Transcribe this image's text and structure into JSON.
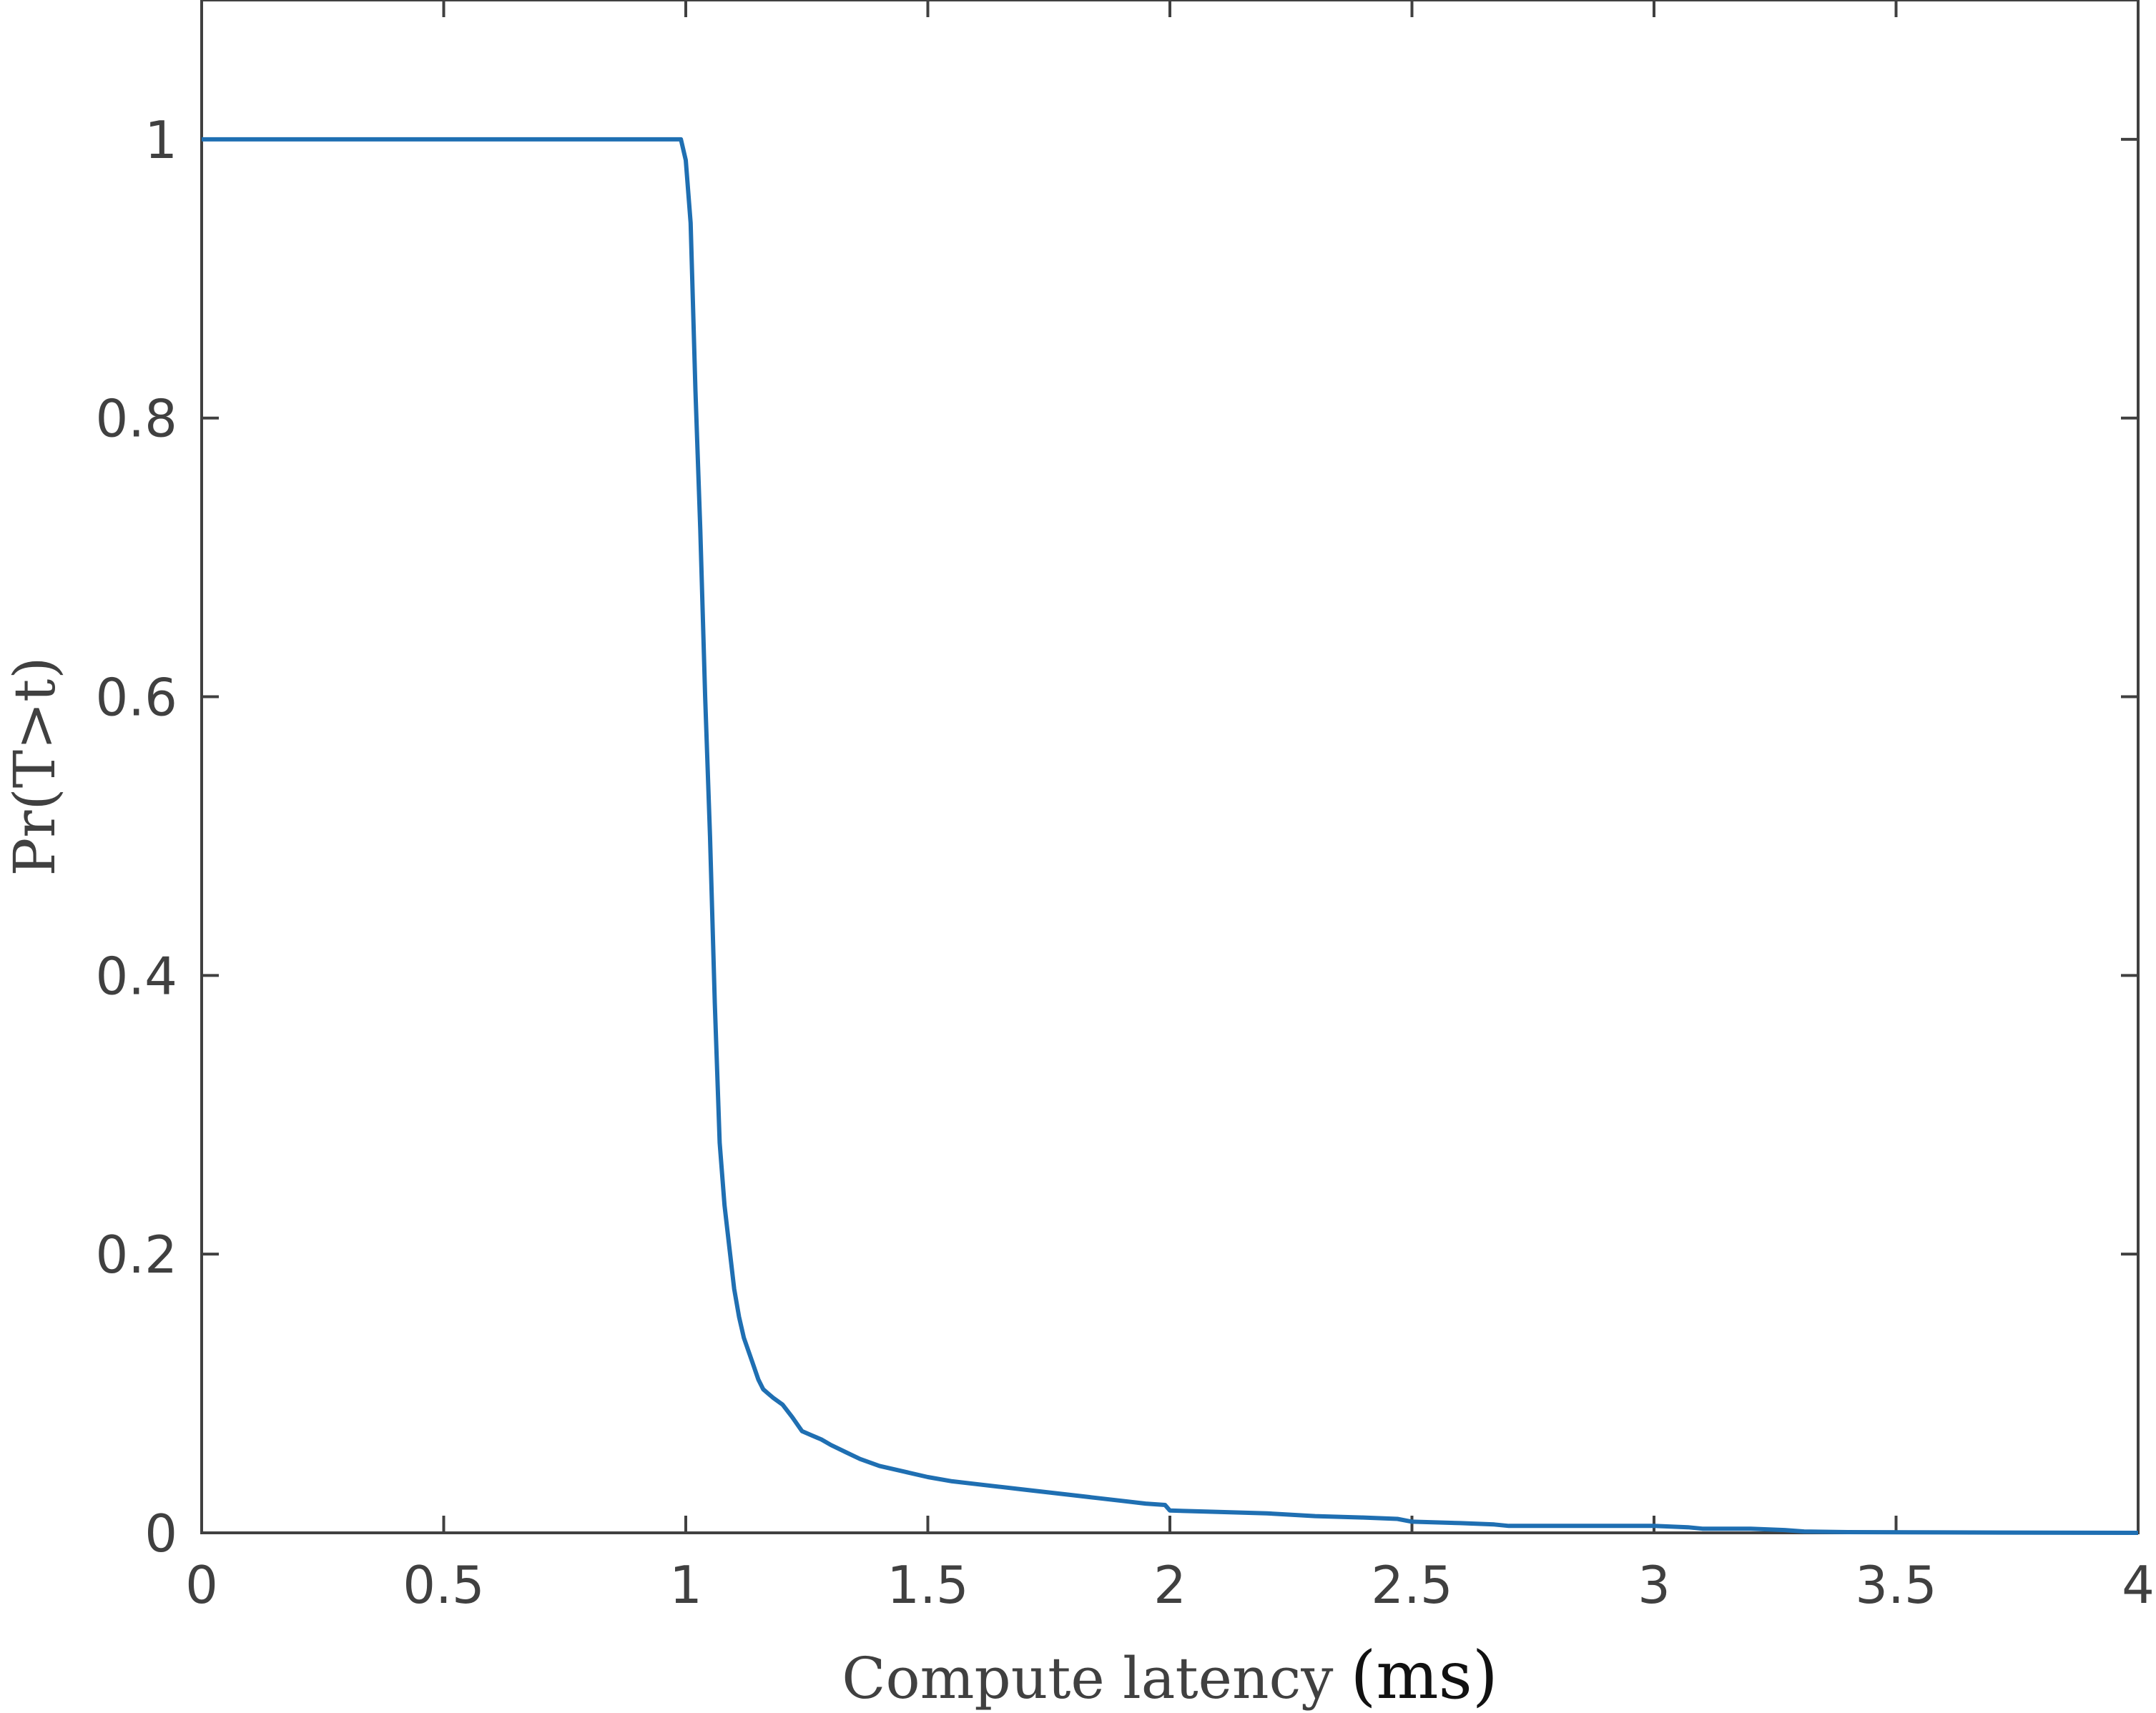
{
  "chart_data": {
    "type": "line",
    "title": "",
    "xlabel": "Compute latency",
    "xlabel_unit": "(ms)",
    "ylabel": "Pr(T>t)",
    "xlim": [
      0,
      4
    ],
    "ylim": [
      0,
      1.1
    ],
    "xticks": [
      0,
      0.5,
      1,
      1.5,
      2,
      2.5,
      3,
      3.5,
      4
    ],
    "xtick_labels": [
      "0",
      "0.5",
      "1",
      "1.5",
      "2",
      "2.5",
      "3",
      "3.5",
      "4"
    ],
    "yticks": [
      0,
      0.2,
      0.4,
      0.6,
      0.8,
      1
    ],
    "ytick_labels": [
      "0",
      "0.2",
      "0.4",
      "0.6",
      "0.8",
      "1"
    ],
    "grid": false,
    "legend": "none",
    "line_color": "#1f6fb2",
    "series": [
      {
        "x": [
          0,
          0.99,
          1.0,
          1.01,
          1.02,
          1.03,
          1.04,
          1.05,
          1.06,
          1.07,
          1.08,
          1.09,
          1.1,
          1.11,
          1.12,
          1.13,
          1.14,
          1.15,
          1.16,
          1.17,
          1.18,
          1.2,
          1.22,
          1.24,
          1.26,
          1.28,
          1.3,
          1.33,
          1.36,
          1.4,
          1.45,
          1.5,
          1.55,
          1.6,
          1.65,
          1.7,
          1.75,
          1.8,
          1.85,
          1.9,
          1.95,
          1.99,
          2.0,
          2.1,
          2.2,
          2.3,
          2.4,
          2.47,
          2.5,
          2.6,
          2.67,
          2.7,
          2.8,
          2.9,
          3.0,
          3.07,
          3.1,
          3.2,
          3.27,
          3.31,
          3.4,
          3.6,
          3.8,
          4.0
        ],
        "y": [
          1,
          1,
          0.985,
          0.94,
          0.82,
          0.72,
          0.6,
          0.5,
          0.38,
          0.28,
          0.235,
          0.205,
          0.175,
          0.155,
          0.14,
          0.13,
          0.12,
          0.11,
          0.103,
          0.1,
          0.097,
          0.092,
          0.083,
          0.073,
          0.07,
          0.067,
          0.063,
          0.058,
          0.053,
          0.048,
          0.044,
          0.04,
          0.037,
          0.035,
          0.033,
          0.031,
          0.029,
          0.027,
          0.025,
          0.023,
          0.021,
          0.02,
          0.016,
          0.015,
          0.014,
          0.012,
          0.011,
          0.01,
          0.008,
          0.007,
          0.006,
          0.005,
          0.005,
          0.005,
          0.005,
          0.004,
          0.003,
          0.003,
          0.002,
          0.001,
          0.0005,
          0.0003,
          0.0001,
          0
        ]
      }
    ]
  }
}
